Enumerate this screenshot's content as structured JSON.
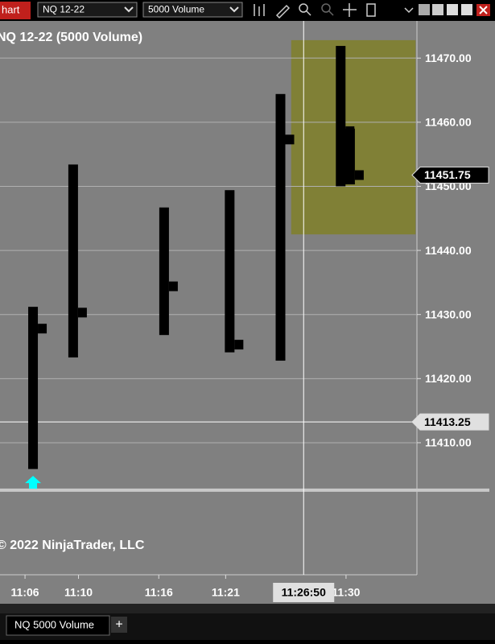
{
  "window": {
    "tab": "hart",
    "instrument": "NQ 12-22",
    "interval": "5000 Volume",
    "tabs": [
      "NQ 5000 Volume"
    ],
    "new_tab": "+"
  },
  "chart_data": {
    "type": "ohlc",
    "title": "NQ 12-22 (5000 Volume)",
    "watermark": "© 2022 NinjaTrader, LLC",
    "x": [
      6.6,
      9.6,
      16.4,
      21.3,
      25.1,
      29.6,
      30.3
    ],
    "high": [
      11431.2,
      11453.4,
      11446.7,
      11449.4,
      11464.4,
      11471.9,
      11459.0
    ],
    "low": [
      11405.9,
      11423.3,
      11426.8,
      11424.1,
      11422.8,
      11450.0,
      11450.3
    ],
    "close": [
      11427.8,
      11430.3,
      11434.4,
      11425.3,
      11457.3,
      11458.6,
      11451.75
    ],
    "color": "#000000",
    "xlim": [
      4.13,
      35.3
    ],
    "xticks": [
      {
        "value": 6,
        "label": "11:06"
      },
      {
        "value": 10,
        "label": "11:10"
      },
      {
        "value": 16,
        "label": "11:16"
      },
      {
        "value": 21,
        "label": "11:21"
      },
      {
        "value": 30,
        "label": "11:30"
      }
    ],
    "ylim": [
      11389.4,
      11475.8
    ],
    "yticks": [
      {
        "value": 11410,
        "label": "11410.00"
      },
      {
        "value": 11420,
        "label": "11420.00"
      },
      {
        "value": 11430,
        "label": "11430.00"
      },
      {
        "value": 11440,
        "label": "11440.00"
      },
      {
        "value": 11450,
        "label": "11450.00"
      },
      {
        "value": 11460,
        "label": "11460.00"
      },
      {
        "value": 11470,
        "label": "11470.00"
      }
    ],
    "grid": true,
    "last_price": 11451.75,
    "crosshair": {
      "x": {
        "value": 26.83,
        "label": "11:26:50"
      },
      "y": 11413.25
    },
    "hline": 11402.6,
    "region": {
      "x": [
        25.9,
        35.2
      ],
      "y": [
        11442.5,
        11472.8
      ],
      "color": "#807f2e"
    },
    "arrows": [
      {
        "x": 6.6,
        "y": 11403.7,
        "color": "#00ffff"
      }
    ]
  }
}
